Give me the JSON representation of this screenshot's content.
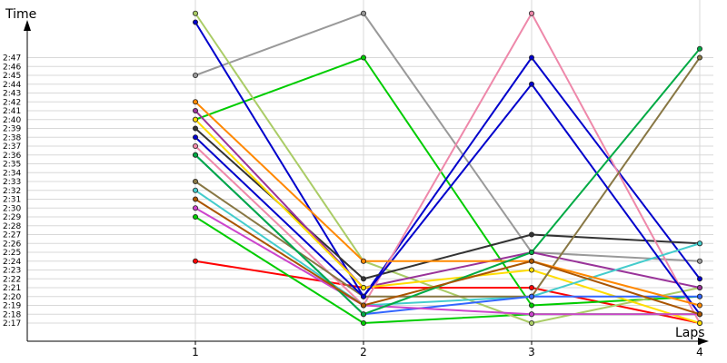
{
  "chart_data": {
    "type": "line",
    "ylabel": "Time",
    "xlabel": "Laps",
    "x": [
      1,
      2,
      3,
      4
    ],
    "x_tick_labels": [
      "1",
      "2",
      "3",
      "4"
    ],
    "y_tick_labels": [
      "2:17",
      "2:18",
      "2:19",
      "2:20",
      "2:21",
      "2:22",
      "2:23",
      "2:24",
      "2:25",
      "2:26",
      "2:27",
      "2:28",
      "2:29",
      "2:30",
      "2:31",
      "2:32",
      "2:33",
      "2:34",
      "2:35",
      "2:36",
      "2:37",
      "2:38",
      "2:39",
      "2:40",
      "2:41",
      "2:42",
      "2:43",
      "2:44",
      "2:45",
      "2:46",
      "2:47"
    ],
    "ylim_seconds": [
      136,
      150
    ],
    "ylim_labels": [
      "2:16",
      "2:50"
    ],
    "grid": {
      "horizontal": true,
      "vertical": true
    },
    "legend": "none",
    "series": [
      {
        "color": "#ff0000",
        "values": [
          "2:24",
          "2:21",
          "2:21",
          "2:17"
        ]
      },
      {
        "color": "#00cc00",
        "values": [
          "2:29",
          "2:17",
          "2:18",
          "2:18"
        ]
      },
      {
        "color": "#00cc00",
        "values": [
          "2:40",
          "2:47",
          "2:19",
          "2:20"
        ]
      },
      {
        "color": "#999999",
        "values": [
          "2:45",
          "2:52",
          "2:25",
          "2:24"
        ]
      },
      {
        "color": "#aacc66",
        "values": [
          "2:52",
          "2:24",
          "2:17",
          "2:21"
        ]
      },
      {
        "color": "#0000cc",
        "values": [
          "2:51",
          "2:20",
          "2:47",
          "2:22"
        ]
      },
      {
        "color": "#333333",
        "values": [
          "2:39",
          "2:22",
          "2:27",
          "2:26"
        ]
      },
      {
        "color": "#993399",
        "values": [
          "2:41",
          "2:21",
          "2:25",
          "2:21"
        ]
      },
      {
        "color": "#ee88aa",
        "values": [
          "2:37",
          "2:19",
          "2:52",
          "2:17"
        ]
      },
      {
        "color": "#ffdd00",
        "values": [
          "2:40",
          "2:21",
          "2:23",
          "2:17"
        ]
      },
      {
        "color": "#44cccc",
        "values": [
          "2:32",
          "2:19",
          "2:20",
          "2:26"
        ]
      },
      {
        "color": "#887744",
        "values": [
          "2:33",
          "2:20",
          "2:20",
          "2:47"
        ]
      },
      {
        "color": "#3366ff",
        "values": [
          "2:36",
          "2:18",
          "2:20",
          "2:20"
        ]
      },
      {
        "color": "#cc44cc",
        "values": [
          "2:30",
          "2:19",
          "2:18",
          "2:18"
        ]
      },
      {
        "color": "#0000cc",
        "values": [
          "2:38",
          "2:20",
          "2:44",
          "2:18"
        ]
      },
      {
        "color": "#ff8800",
        "values": [
          "2:42",
          "2:24",
          "2:24",
          "2:19"
        ]
      },
      {
        "color": "#00aa44",
        "values": [
          "2:36",
          "2:18",
          "2:25",
          "2:48"
        ]
      },
      {
        "color": "#aa5500",
        "values": [
          "2:31",
          "2:19",
          "2:24",
          "2:18"
        ]
      }
    ]
  }
}
